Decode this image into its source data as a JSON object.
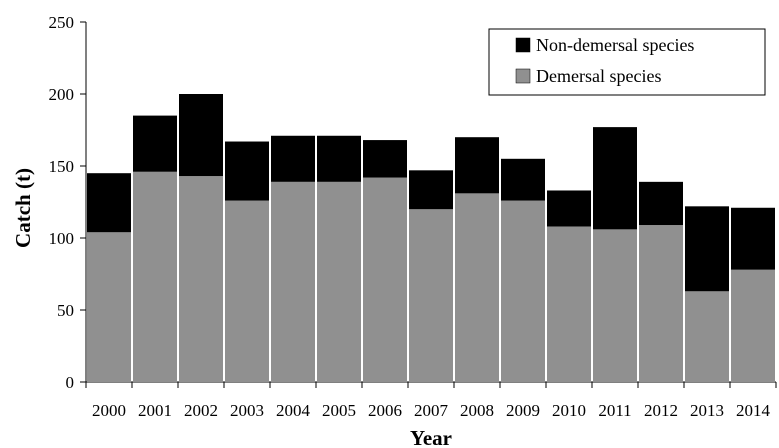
{
  "colors": {
    "demersal": "#909090",
    "non_demersal": "#000000",
    "background": "#ffffff",
    "axis": "#000000"
  },
  "chart_data": {
    "type": "bar",
    "stacked": true,
    "categories": [
      "2000",
      "2001",
      "2002",
      "2003",
      "2004",
      "2005",
      "2006",
      "2007",
      "2008",
      "2009",
      "2010",
      "2011",
      "2012",
      "2013",
      "2014"
    ],
    "series": [
      {
        "name": "Demersal species",
        "values": [
          104,
          146,
          143,
          126,
          139,
          139,
          142,
          120,
          131,
          126,
          108,
          106,
          109,
          63,
          78
        ]
      },
      {
        "name": "Non-demersal species",
        "values": [
          41,
          39,
          57,
          41,
          32,
          32,
          26,
          27,
          39,
          29,
          25,
          71,
          30,
          59,
          43
        ]
      }
    ],
    "xlabel": "Year",
    "ylabel": "Catch (t)",
    "ylim": [
      0,
      250
    ],
    "yticks": [
      0,
      50,
      100,
      150,
      200,
      250
    ],
    "grid": false,
    "legend_position": "top-right",
    "legend_order": [
      "Non-demersal species",
      "Demersal species"
    ]
  }
}
